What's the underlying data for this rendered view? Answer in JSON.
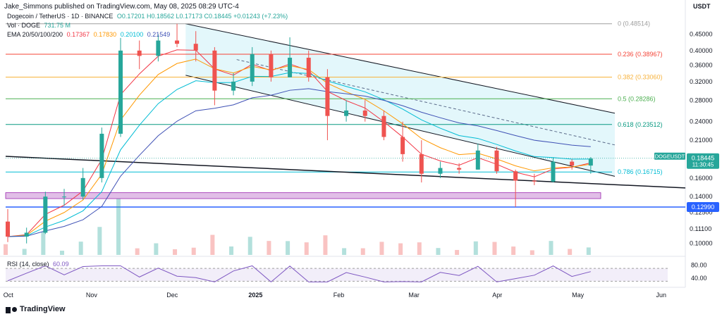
{
  "header": {
    "publisher": "Jake_Simmons published on TradingView.com, May 08, 2025 08:29 UTC-4",
    "symbol": "Dogecoin / TetherUS · 1D · BINANCE",
    "ohlc": "O0.17201 H0.18562 L0.17173 C0.18445 +0.01243 (+7.23%)",
    "volume_label": "Vol · DOGE",
    "volume_value": "731.75 M",
    "ema_label": "EMA 20/50/100/200",
    "ema_values": [
      "0.17367",
      "0.17830",
      "0.20100",
      "0.21549"
    ],
    "rsi_label": "RSI (14, close)",
    "rsi_value": "60.09"
  },
  "footer": {
    "brand": "TradingView"
  },
  "colors": {
    "up": "#26a69a",
    "down": "#ef5350",
    "ema20": "#f23645",
    "ema50": "#ff9800",
    "ema100": "#00bcd4",
    "ema200": "#3f51b5",
    "channel_fill": "#d1f2f8",
    "support_zone": "#e1bee7",
    "support_line": "#2962ff",
    "rsi": "#7e57c2"
  },
  "chart_data": {
    "type": "candlestick",
    "pair": "DOGEUSDT",
    "current_price": "0.18445",
    "countdown": "11:30:45",
    "price_axis": {
      "unit": "USDT",
      "scale": "log",
      "ticks": [
        "0.45000",
        "0.40000",
        "0.36000",
        "0.32000",
        "0.28000",
        "0.24000",
        "0.21000",
        "0.18000",
        "0.16000",
        "0.14000",
        "0.12500",
        "0.11100",
        "0.10000"
      ]
    },
    "time_axis": {
      "labels": [
        "Oct",
        "Nov",
        "Dec",
        "2025",
        "Feb",
        "Mar",
        "Apr",
        "May",
        "Jun"
      ]
    },
    "fib_levels": [
      {
        "label": "0 (0.48514)",
        "ratio": 0,
        "price": 0.48514,
        "color": "#9e9e9e"
      },
      {
        "label": "0.236 (0.38967)",
        "ratio": 0.236,
        "price": 0.38967,
        "color": "#f44336"
      },
      {
        "label": "0.382 (0.33060)",
        "ratio": 0.382,
        "price": 0.3306,
        "color": "#f7b23b"
      },
      {
        "label": "0.5 (0.28286)",
        "ratio": 0.5,
        "price": 0.28286,
        "color": "#4caf50"
      },
      {
        "label": "0.618 (0.23512)",
        "ratio": 0.618,
        "price": 0.23512,
        "color": "#089981"
      },
      {
        "label": "0.786 (0.16715)",
        "ratio": 0.786,
        "price": 0.16715,
        "color": "#00bcd4"
      }
    ],
    "support_price": "0.12990",
    "rsi": {
      "ticks": [
        "80.00",
        "40.00"
      ],
      "value": 60.09
    },
    "ohlc_weekly": [
      {
        "d": "2024-09-30",
        "o": 0.117,
        "h": 0.128,
        "l": 0.101,
        "c": 0.105
      },
      {
        "d": "2024-10-07",
        "o": 0.105,
        "h": 0.112,
        "l": 0.1,
        "c": 0.108
      },
      {
        "d": "2024-10-14",
        "o": 0.108,
        "h": 0.145,
        "l": 0.107,
        "c": 0.14
      },
      {
        "d": "2024-10-21",
        "o": 0.14,
        "h": 0.148,
        "l": 0.131,
        "c": 0.14
      },
      {
        "d": "2024-10-28",
        "o": 0.14,
        "h": 0.172,
        "l": 0.137,
        "c": 0.16
      },
      {
        "d": "2024-11-04",
        "o": 0.16,
        "h": 0.23,
        "l": 0.155,
        "c": 0.22
      },
      {
        "d": "2024-11-11",
        "o": 0.22,
        "h": 0.438,
        "l": 0.215,
        "c": 0.4
      },
      {
        "d": "2024-11-18",
        "o": 0.4,
        "h": 0.43,
        "l": 0.35,
        "c": 0.385
      },
      {
        "d": "2024-11-25",
        "o": 0.385,
        "h": 0.45,
        "l": 0.37,
        "c": 0.43
      },
      {
        "d": "2024-12-02",
        "o": 0.43,
        "h": 0.485,
        "l": 0.41,
        "c": 0.42
      },
      {
        "d": "2024-12-09",
        "o": 0.42,
        "h": 0.46,
        "l": 0.37,
        "c": 0.4
      },
      {
        "d": "2024-12-16",
        "o": 0.4,
        "h": 0.41,
        "l": 0.27,
        "c": 0.3
      },
      {
        "d": "2024-12-23",
        "o": 0.3,
        "h": 0.34,
        "l": 0.29,
        "c": 0.32
      },
      {
        "d": "2024-12-30",
        "o": 0.32,
        "h": 0.41,
        "l": 0.31,
        "c": 0.39
      },
      {
        "d": "2025-01-06",
        "o": 0.39,
        "h": 0.4,
        "l": 0.32,
        "c": 0.33
      },
      {
        "d": "2025-01-13",
        "o": 0.33,
        "h": 0.44,
        "l": 0.33,
        "c": 0.38
      },
      {
        "d": "2025-01-20",
        "o": 0.38,
        "h": 0.4,
        "l": 0.32,
        "c": 0.33
      },
      {
        "d": "2025-01-27",
        "o": 0.33,
        "h": 0.35,
        "l": 0.21,
        "c": 0.25
      },
      {
        "d": "2025-02-03",
        "o": 0.25,
        "h": 0.28,
        "l": 0.24,
        "c": 0.26
      },
      {
        "d": "2025-02-10",
        "o": 0.26,
        "h": 0.28,
        "l": 0.24,
        "c": 0.25
      },
      {
        "d": "2025-02-17",
        "o": 0.25,
        "h": 0.26,
        "l": 0.21,
        "c": 0.215
      },
      {
        "d": "2025-02-24",
        "o": 0.215,
        "h": 0.24,
        "l": 0.18,
        "c": 0.19
      },
      {
        "d": "2025-03-03",
        "o": 0.19,
        "h": 0.21,
        "l": 0.155,
        "c": 0.165
      },
      {
        "d": "2025-03-10",
        "o": 0.165,
        "h": 0.18,
        "l": 0.16,
        "c": 0.172
      },
      {
        "d": "2025-03-17",
        "o": 0.172,
        "h": 0.178,
        "l": 0.165,
        "c": 0.17
      },
      {
        "d": "2025-03-24",
        "o": 0.17,
        "h": 0.205,
        "l": 0.17,
        "c": 0.195
      },
      {
        "d": "2025-03-31",
        "o": 0.195,
        "h": 0.2,
        "l": 0.165,
        "c": 0.168
      },
      {
        "d": "2025-04-07",
        "o": 0.168,
        "h": 0.17,
        "l": 0.13,
        "c": 0.157
      },
      {
        "d": "2025-04-14",
        "o": 0.157,
        "h": 0.165,
        "l": 0.152,
        "c": 0.156
      },
      {
        "d": "2025-04-21",
        "o": 0.156,
        "h": 0.185,
        "l": 0.155,
        "c": 0.18
      },
      {
        "d": "2025-04-28",
        "o": 0.18,
        "h": 0.183,
        "l": 0.17,
        "c": 0.175
      },
      {
        "d": "2025-05-05",
        "o": 0.175,
        "h": 0.186,
        "l": 0.165,
        "c": 0.184
      }
    ]
  }
}
